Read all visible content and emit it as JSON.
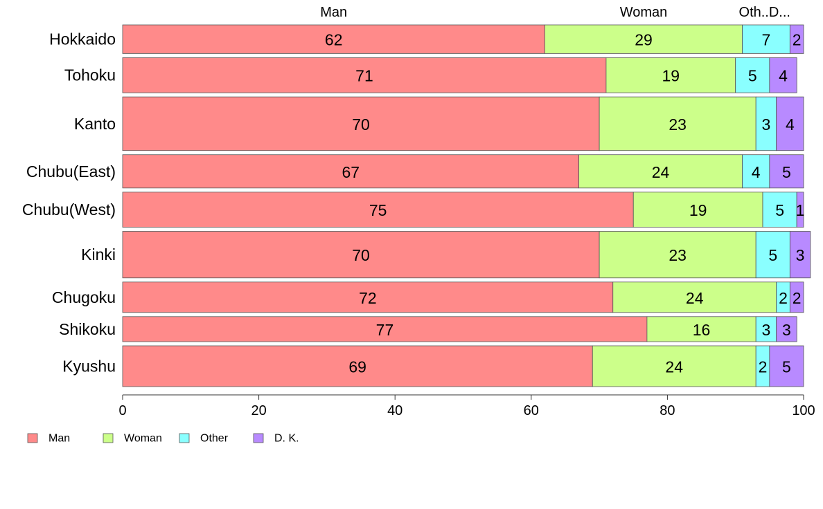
{
  "chart_data": {
    "type": "bar",
    "orientation": "horizontal",
    "stacked": true,
    "categories": [
      "Hokkaido",
      "Tohoku",
      "Kanto",
      "Chubu(East)",
      "Chubu(West)",
      "Kinki",
      "Chugoku",
      "Shikoku",
      "Kyushu"
    ],
    "category_weights": [
      0.8,
      0.98,
      1.5,
      0.93,
      0.98,
      1.3,
      0.85,
      0.7,
      1.14
    ],
    "series": [
      {
        "name": "Man",
        "color": "#ff8a8a",
        "values": [
          62,
          71,
          70,
          67,
          75,
          70,
          72,
          77,
          69
        ],
        "labels": [
          "62",
          "71",
          "70",
          "67",
          "75",
          "70",
          "72",
          "77",
          "69"
        ]
      },
      {
        "name": "Woman",
        "color": "#ccff8a",
        "values": [
          29,
          19,
          23,
          24,
          19,
          23,
          24,
          16,
          24
        ],
        "labels": [
          "29",
          "19",
          "23",
          "24",
          "19",
          "23",
          "24",
          "16",
          "24"
        ]
      },
      {
        "name": "Other",
        "color": "#8affff",
        "values": [
          7,
          5,
          3,
          4,
          5,
          5,
          2,
          3,
          2
        ],
        "labels": [
          "7",
          "5",
          "3",
          "4",
          "5",
          "5",
          "2",
          "3",
          "2"
        ]
      },
      {
        "name": "D. K.",
        "color": "#b88aff",
        "values": [
          2,
          4,
          4,
          5,
          1,
          3,
          2,
          3,
          5
        ],
        "labels": [
          "2",
          "4",
          "4",
          "5",
          "1",
          "3",
          "2",
          "3",
          "5"
        ]
      }
    ],
    "top_labels": [
      "Man",
      "Woman",
      "Oth..D..."
    ],
    "xlim": [
      0,
      100
    ],
    "xticks": [
      "0",
      "20",
      "40",
      "60",
      "80",
      "100"
    ],
    "xlabel": "",
    "ylabel": "",
    "title": "",
    "legend_labels": [
      "Man",
      "Woman",
      "Other",
      "D. K."
    ],
    "legend_position": "bottom-left",
    "grid": false
  }
}
